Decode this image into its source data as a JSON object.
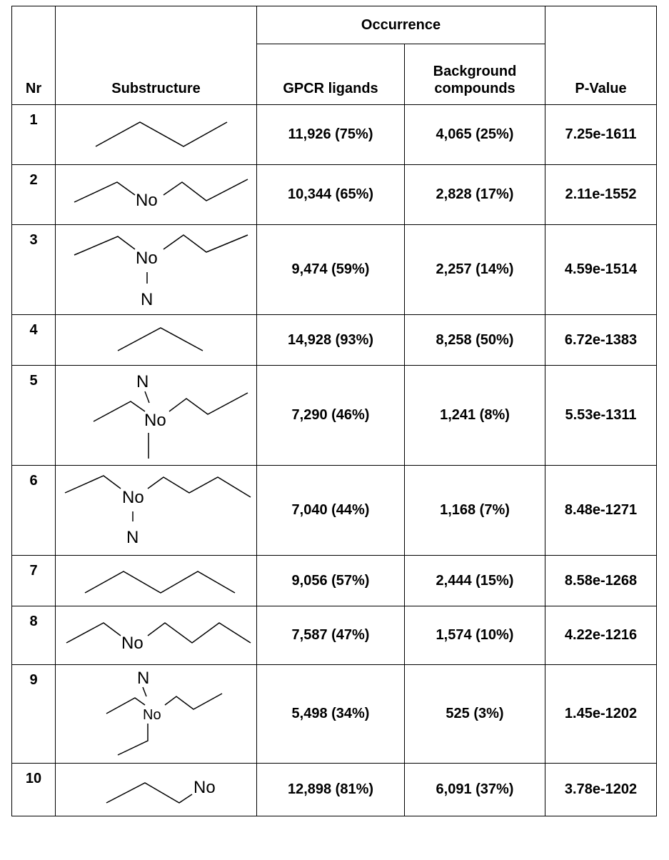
{
  "header": {
    "nr": "Nr",
    "substructure": "Substructure",
    "occurrence": "Occurrence",
    "gpcr": "GPCR ligands",
    "background_line1": "Background",
    "background_line2": "compounds",
    "pvalue": "P-Value"
  },
  "atom_labels": {
    "no": "No",
    "n": "N"
  },
  "rows": [
    {
      "nr": "1",
      "gpcr": "11,926 (75%)",
      "background": "4,065 (25%)",
      "pvalue": "7.25e-1611"
    },
    {
      "nr": "2",
      "gpcr": "10,344 (65%)",
      "background": "2,828 (17%)",
      "pvalue": "2.11e-1552"
    },
    {
      "nr": "3",
      "gpcr": "9,474 (59%)",
      "background": "2,257 (14%)",
      "pvalue": "4.59e-1514"
    },
    {
      "nr": "4",
      "gpcr": "14,928 (93%)",
      "background": "8,258 (50%)",
      "pvalue": "6.72e-1383"
    },
    {
      "nr": "5",
      "gpcr": "7,290 (46%)",
      "background": "1,241 (8%)",
      "pvalue": "5.53e-1311"
    },
    {
      "nr": "6",
      "gpcr": "7,040 (44%)",
      "background": "1,168 (7%)",
      "pvalue": "8.48e-1271"
    },
    {
      "nr": "7",
      "gpcr": "9,056 (57%)",
      "background": "2,444 (15%)",
      "pvalue": "8.58e-1268"
    },
    {
      "nr": "8",
      "gpcr": "7,587 (47%)",
      "background": "1,574 (10%)",
      "pvalue": "4.22e-1216"
    },
    {
      "nr": "9",
      "gpcr": "5,498 (34%)",
      "background": "525 (3%)",
      "pvalue": "1.45e-1202"
    },
    {
      "nr": "10",
      "gpcr": "12,898 (81%)",
      "background": "6,091 (37%)",
      "pvalue": "3.78e-1202"
    }
  ]
}
